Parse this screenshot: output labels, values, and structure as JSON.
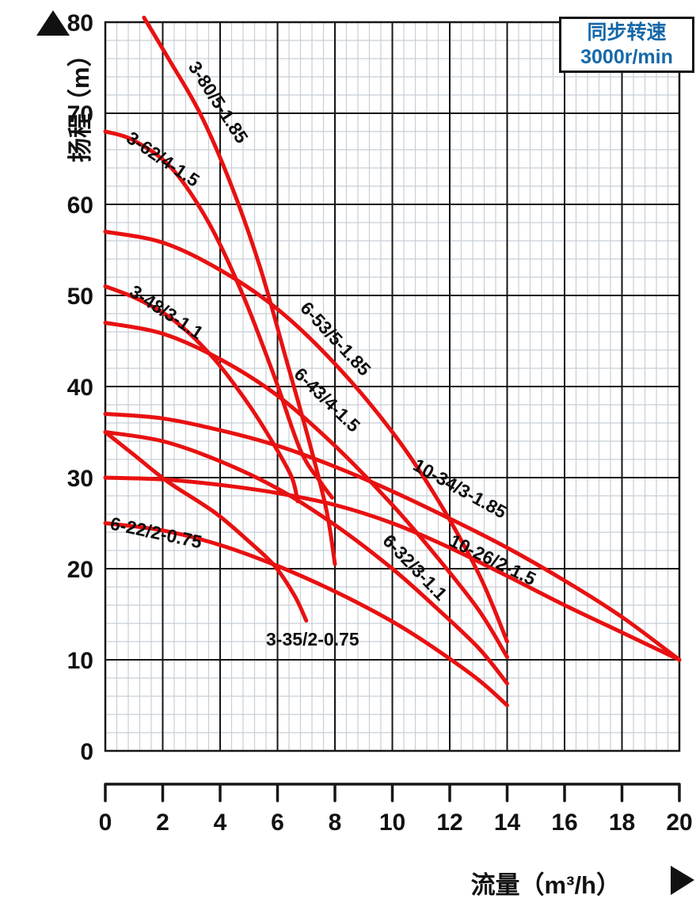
{
  "legend": {
    "line1": "同步转速",
    "line2": "3000r/min",
    "text_color": "#1668a8"
  },
  "axis": {
    "y_title": "扬程（m）",
    "y_arrow": "up-arrow",
    "x_title": "流量（m³/h）",
    "x_arrow": "right-arrow",
    "y_ticks": [
      0,
      10,
      20,
      30,
      40,
      50,
      60,
      70,
      80
    ],
    "x_ticks": [
      0,
      2,
      4,
      6,
      8,
      10,
      12,
      14,
      16,
      18,
      20
    ]
  },
  "colors": {
    "curve": "#e81111",
    "grid_major": "#161616",
    "grid_minor": "#c7cfd6",
    "axis_text": "#111111",
    "legend_text": "#1668a8"
  },
  "chart_data": {
    "type": "line",
    "title": "",
    "xlabel": "流量（m³/h）",
    "ylabel": "扬程（m）",
    "xlim": [
      0,
      20
    ],
    "ylim": [
      0,
      80
    ],
    "x_major_step": 2,
    "y_major_step": 10,
    "x_minor_step": 0.4,
    "y_minor_step": 2,
    "grid": true,
    "legend_position": "top-right",
    "annotation": "同步转速 3000r/min",
    "series": [
      {
        "name": "3-80/5-1.85",
        "points": [
          [
            1.35,
            80.5
          ],
          [
            2.2,
            76
          ],
          [
            3.3,
            70
          ],
          [
            4.4,
            62
          ],
          [
            5.4,
            53
          ],
          [
            6.3,
            43
          ],
          [
            7.1,
            34
          ],
          [
            7.7,
            26.5
          ],
          [
            8.0,
            20.5
          ]
        ],
        "label": {
          "x": 237,
          "y": 84,
          "angle": 57
        }
      },
      {
        "name": "3-62/4-1.5",
        "points": [
          [
            0,
            68
          ],
          [
            1,
            67
          ],
          [
            2.3,
            64
          ],
          [
            3.6,
            58
          ],
          [
            4.8,
            50
          ],
          [
            5.9,
            41
          ],
          [
            6.8,
            33
          ],
          [
            7.5,
            29.5
          ],
          [
            7.9,
            27.8
          ]
        ],
        "label": {
          "x": 158,
          "y": 178,
          "angle": 34
        }
      },
      {
        "name": "3-48/3-1.1",
        "points": [
          [
            0,
            51
          ],
          [
            1.2,
            49.5
          ],
          [
            2.5,
            47
          ],
          [
            3.8,
            43
          ],
          [
            5,
            38
          ],
          [
            5.9,
            33.5
          ],
          [
            6.5,
            30
          ],
          [
            6.7,
            27.4
          ]
        ],
        "label": {
          "x": 162,
          "y": 372,
          "angle": 33
        }
      },
      {
        "name": "3-35/2-0.75",
        "points": [
          [
            0,
            35
          ],
          [
            1,
            32.5
          ],
          [
            2.2,
            29.5
          ],
          [
            3.8,
            26.2
          ],
          [
            5,
            23
          ],
          [
            5.9,
            20.3
          ],
          [
            6.6,
            17
          ],
          [
            7.0,
            14.3
          ]
        ],
        "label": {
          "x": 336,
          "y": 815,
          "angle": 0
        }
      },
      {
        "name": "6-53/5-1.85",
        "points": [
          [
            0,
            57
          ],
          [
            2,
            55.8
          ],
          [
            4,
            52.8
          ],
          [
            6,
            48.5
          ],
          [
            8,
            42.5
          ],
          [
            10,
            35
          ],
          [
            11.5,
            28
          ],
          [
            13,
            19.5
          ],
          [
            14,
            12
          ]
        ],
        "label": {
          "x": 378,
          "y": 390,
          "angle": 47
        }
      },
      {
        "name": "6-43/4-1.5",
        "points": [
          [
            0,
            47
          ],
          [
            2,
            45.8
          ],
          [
            4,
            43
          ],
          [
            6,
            39
          ],
          [
            8,
            33.5
          ],
          [
            10,
            27
          ],
          [
            11.5,
            21.5
          ],
          [
            13,
            15.5
          ],
          [
            14,
            10.3
          ]
        ],
        "label": {
          "x": 370,
          "y": 474,
          "angle": 44
        }
      },
      {
        "name": "6-32/3-1.1",
        "points": [
          [
            0,
            35
          ],
          [
            2,
            34
          ],
          [
            4,
            31.8
          ],
          [
            6,
            28.8
          ],
          [
            8,
            24.8
          ],
          [
            10,
            20
          ],
          [
            11.5,
            15.8
          ],
          [
            13,
            11.3
          ],
          [
            14,
            7.4
          ]
        ],
        "label": {
          "x": 482,
          "y": 684,
          "angle": 46
        }
      },
      {
        "name": "6-22/2-0.75",
        "points": [
          [
            0,
            25
          ],
          [
            2,
            24.2
          ],
          [
            4,
            22.6
          ],
          [
            6,
            20.3
          ],
          [
            8,
            17.5
          ],
          [
            10,
            14.2
          ],
          [
            11.5,
            11.2
          ],
          [
            13,
            7.8
          ],
          [
            14,
            5
          ]
        ],
        "label": {
          "x": 138,
          "y": 668,
          "angle": 12
        }
      },
      {
        "name": "10-34/3-1.85",
        "points": [
          [
            0,
            37
          ],
          [
            2,
            36.5
          ],
          [
            4,
            35.2
          ],
          [
            6,
            33.5
          ],
          [
            8,
            31.2
          ],
          [
            10,
            28.5
          ],
          [
            12,
            25.5
          ],
          [
            14,
            22.3
          ],
          [
            16,
            18.7
          ],
          [
            18,
            14.7
          ],
          [
            20,
            10
          ]
        ],
        "label": {
          "x": 520,
          "y": 592,
          "angle": 29
        }
      },
      {
        "name": "10-26/2-1.5",
        "points": [
          [
            0,
            30
          ],
          [
            2,
            29.8
          ],
          [
            4,
            29.2
          ],
          [
            6,
            28.3
          ],
          [
            8,
            27
          ],
          [
            10,
            25
          ],
          [
            12,
            22.3
          ],
          [
            14,
            19.2
          ],
          [
            16,
            16
          ],
          [
            18,
            13
          ],
          [
            20,
            10
          ]
        ],
        "label": {
          "x": 566,
          "y": 688,
          "angle": 26
        }
      }
    ]
  }
}
